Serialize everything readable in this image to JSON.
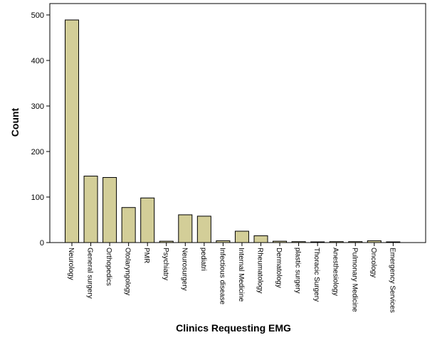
{
  "chart_data": {
    "type": "bar",
    "title": "",
    "xlabel": "Clinics Requesting EMG",
    "ylabel": "Count",
    "ylim": [
      0,
      500
    ],
    "yticks": [
      0,
      100,
      200,
      300,
      400,
      500
    ],
    "grid": false,
    "bar_color": "#d3ce98",
    "bar_edge_color": "#000000",
    "categories": [
      "Neurology",
      "General surgery",
      "Orthopedics",
      "Otolaryngology",
      "PMR",
      "Psychiatry",
      "Neurosurgery",
      "pediatri",
      "Infectious disease",
      "Internal Medicine",
      "Rheumatology",
      "Dermatology",
      "plastic surgery",
      "Thoracic Surgery",
      "Anesthesiology",
      "Pulmonary Medicine",
      "Oncology",
      "Emergency Services"
    ],
    "values": [
      489,
      146,
      143,
      77,
      98,
      3,
      61,
      58,
      4,
      25,
      15,
      3,
      2,
      1,
      2,
      2,
      4,
      1
    ]
  }
}
